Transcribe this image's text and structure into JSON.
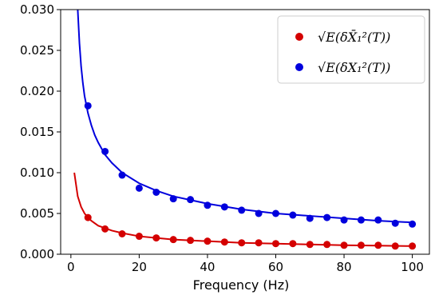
{
  "chart_data": {
    "type": "scatter",
    "title": "",
    "xlabel": "Frequency (Hz)",
    "ylabel": "",
    "xlim": [
      -3,
      105
    ],
    "ylim": [
      0,
      0.03
    ],
    "xticks": [
      0,
      20,
      40,
      60,
      80,
      100
    ],
    "yticks": [
      0.0,
      0.005,
      0.01,
      0.015,
      0.02,
      0.025,
      0.03
    ],
    "xtick_labels": [
      "0",
      "20",
      "40",
      "60",
      "80",
      "100"
    ],
    "ytick_labels": [
      "0.000",
      "0.005",
      "0.010",
      "0.015",
      "0.020",
      "0.025",
      "0.030"
    ],
    "grid": false,
    "legend_position": "top-right",
    "series": [
      {
        "name": "√E(δX̄₁²(T))",
        "color": "#d40000",
        "marker": "circle",
        "x": [
          5,
          10,
          15,
          20,
          25,
          30,
          35,
          40,
          45,
          50,
          55,
          60,
          65,
          70,
          75,
          80,
          85,
          90,
          95,
          100
        ],
        "y": [
          0.0045,
          0.0031,
          0.0025,
          0.0022,
          0.002,
          0.0018,
          0.0017,
          0.0016,
          0.0015,
          0.0014,
          0.0014,
          0.0013,
          0.0013,
          0.0012,
          0.0012,
          0.0011,
          0.0011,
          0.0011,
          0.001,
          0.001
        ],
        "fit_x": [
          1,
          2,
          3,
          4,
          5,
          6,
          8,
          10,
          12,
          15,
          20,
          25,
          30,
          40,
          50,
          60,
          70,
          80,
          90,
          100
        ],
        "fit_y": [
          0.01,
          0.0071,
          0.0058,
          0.005,
          0.0045,
          0.0041,
          0.0035,
          0.0032,
          0.0029,
          0.0026,
          0.0022,
          0.002,
          0.0018,
          0.0016,
          0.0014,
          0.0013,
          0.0012,
          0.0011,
          0.00105,
          0.001
        ]
      },
      {
        "name": "√E(δX₁²(T))",
        "color": "#0000dd",
        "marker": "circle",
        "x": [
          5,
          10,
          15,
          20,
          25,
          30,
          35,
          40,
          45,
          50,
          55,
          60,
          65,
          70,
          75,
          80,
          85,
          90,
          95,
          100
        ],
        "y": [
          0.0182,
          0.0126,
          0.0097,
          0.0081,
          0.0076,
          0.0068,
          0.0067,
          0.006,
          0.0058,
          0.0054,
          0.005,
          0.005,
          0.0048,
          0.0044,
          0.0045,
          0.0042,
          0.0042,
          0.0042,
          0.0038,
          0.0037
        ],
        "fit_x": [
          2,
          2.5,
          3,
          3.5,
          4,
          5,
          6,
          7,
          8,
          10,
          12,
          15,
          20,
          25,
          30,
          40,
          50,
          60,
          70,
          80,
          90,
          100
        ],
        "fit_y": [
          0.03,
          0.0259,
          0.023,
          0.021,
          0.0194,
          0.0173,
          0.0158,
          0.0146,
          0.0137,
          0.0122,
          0.0112,
          0.01,
          0.0087,
          0.0078,
          0.0071,
          0.0062,
          0.0055,
          0.005,
          0.0047,
          0.0044,
          0.0041,
          0.0039
        ]
      }
    ]
  }
}
